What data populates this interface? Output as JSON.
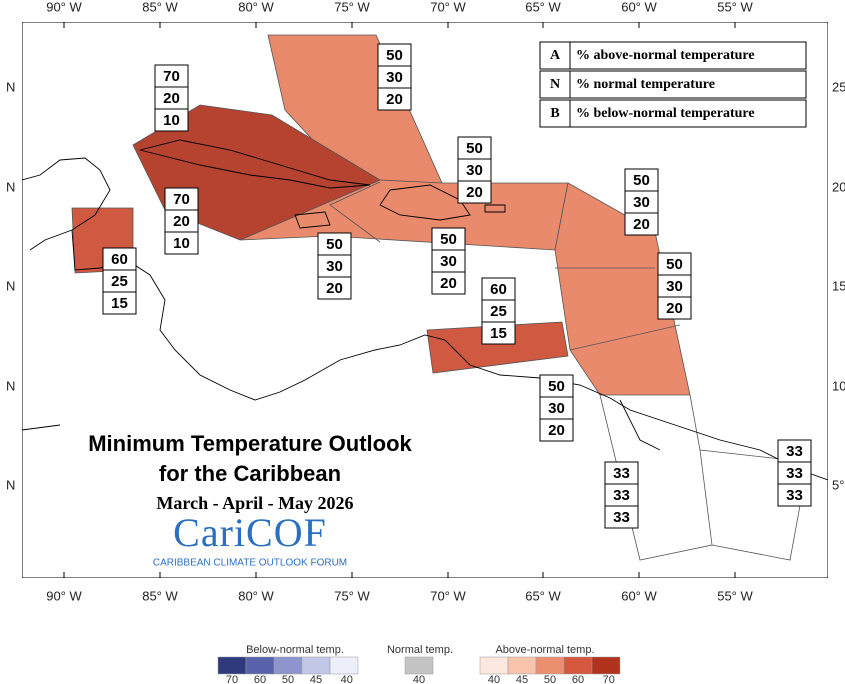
{
  "map": {
    "top_labels": [
      "90° W",
      "85° W",
      "80° W",
      "75° W",
      "70° W",
      "65° W",
      "60° W",
      "55° W"
    ],
    "bottom_labels": [
      "90° W",
      "85° W",
      "80° W",
      "75° W",
      "70° W",
      "65° W",
      "60° W",
      "55° W"
    ],
    "left_labels": [
      "N",
      "N",
      "N",
      "N",
      "N"
    ],
    "right_labels": [
      "25°",
      "20°",
      "15°",
      "10°",
      "5°"
    ]
  },
  "key": [
    {
      "letter": "A",
      "text": "% above-normal temperature"
    },
    {
      "letter": "N",
      "text": "% normal temperature"
    },
    {
      "letter": "B",
      "text": "% below-normal temperature"
    }
  ],
  "outlooks": [
    {
      "above": 70,
      "normal": 20,
      "below": 10
    },
    {
      "above": 50,
      "normal": 30,
      "below": 20
    },
    {
      "above": 70,
      "normal": 20,
      "below": 10
    },
    {
      "above": 60,
      "normal": 25,
      "below": 15
    },
    {
      "above": 50,
      "normal": 30,
      "below": 20
    },
    {
      "above": 50,
      "normal": 30,
      "below": 20
    },
    {
      "above": 50,
      "normal": 30,
      "below": 20
    },
    {
      "above": 50,
      "normal": 30,
      "below": 20
    },
    {
      "above": 50,
      "normal": 30,
      "below": 20
    },
    {
      "above": 60,
      "normal": 25,
      "below": 15
    },
    {
      "above": 50,
      "normal": 30,
      "below": 20
    },
    {
      "above": 33,
      "normal": 33,
      "below": 33
    },
    {
      "above": 33,
      "normal": 33,
      "below": 33
    }
  ],
  "title": {
    "line1": "Minimum Temperature Outlook",
    "line2": "for the Caribbean",
    "period": "March - April - May 2026",
    "logo": "CariCOF",
    "logo_sub": "CARIBBEAN CLIMATE OUTLOOK FORUM"
  },
  "legend": {
    "below": {
      "title": "Below-normal temp.",
      "labels": [
        70,
        60,
        50,
        45,
        40
      ],
      "colors": [
        "#2e3a7c",
        "#5862aa",
        "#8e95cc",
        "#c3c7e7",
        "#eceef9"
      ]
    },
    "normal": {
      "title": "Normal temp.",
      "labels": [
        40
      ],
      "colors": [
        "#c4c4c4"
      ]
    },
    "above": {
      "title": "Above-normal temp.",
      "labels": [
        40,
        45,
        50,
        60,
        70
      ],
      "colors": [
        "#fde8df",
        "#f8c4ae",
        "#eb8f71",
        "#d5573e",
        "#b1331e"
      ]
    }
  }
}
